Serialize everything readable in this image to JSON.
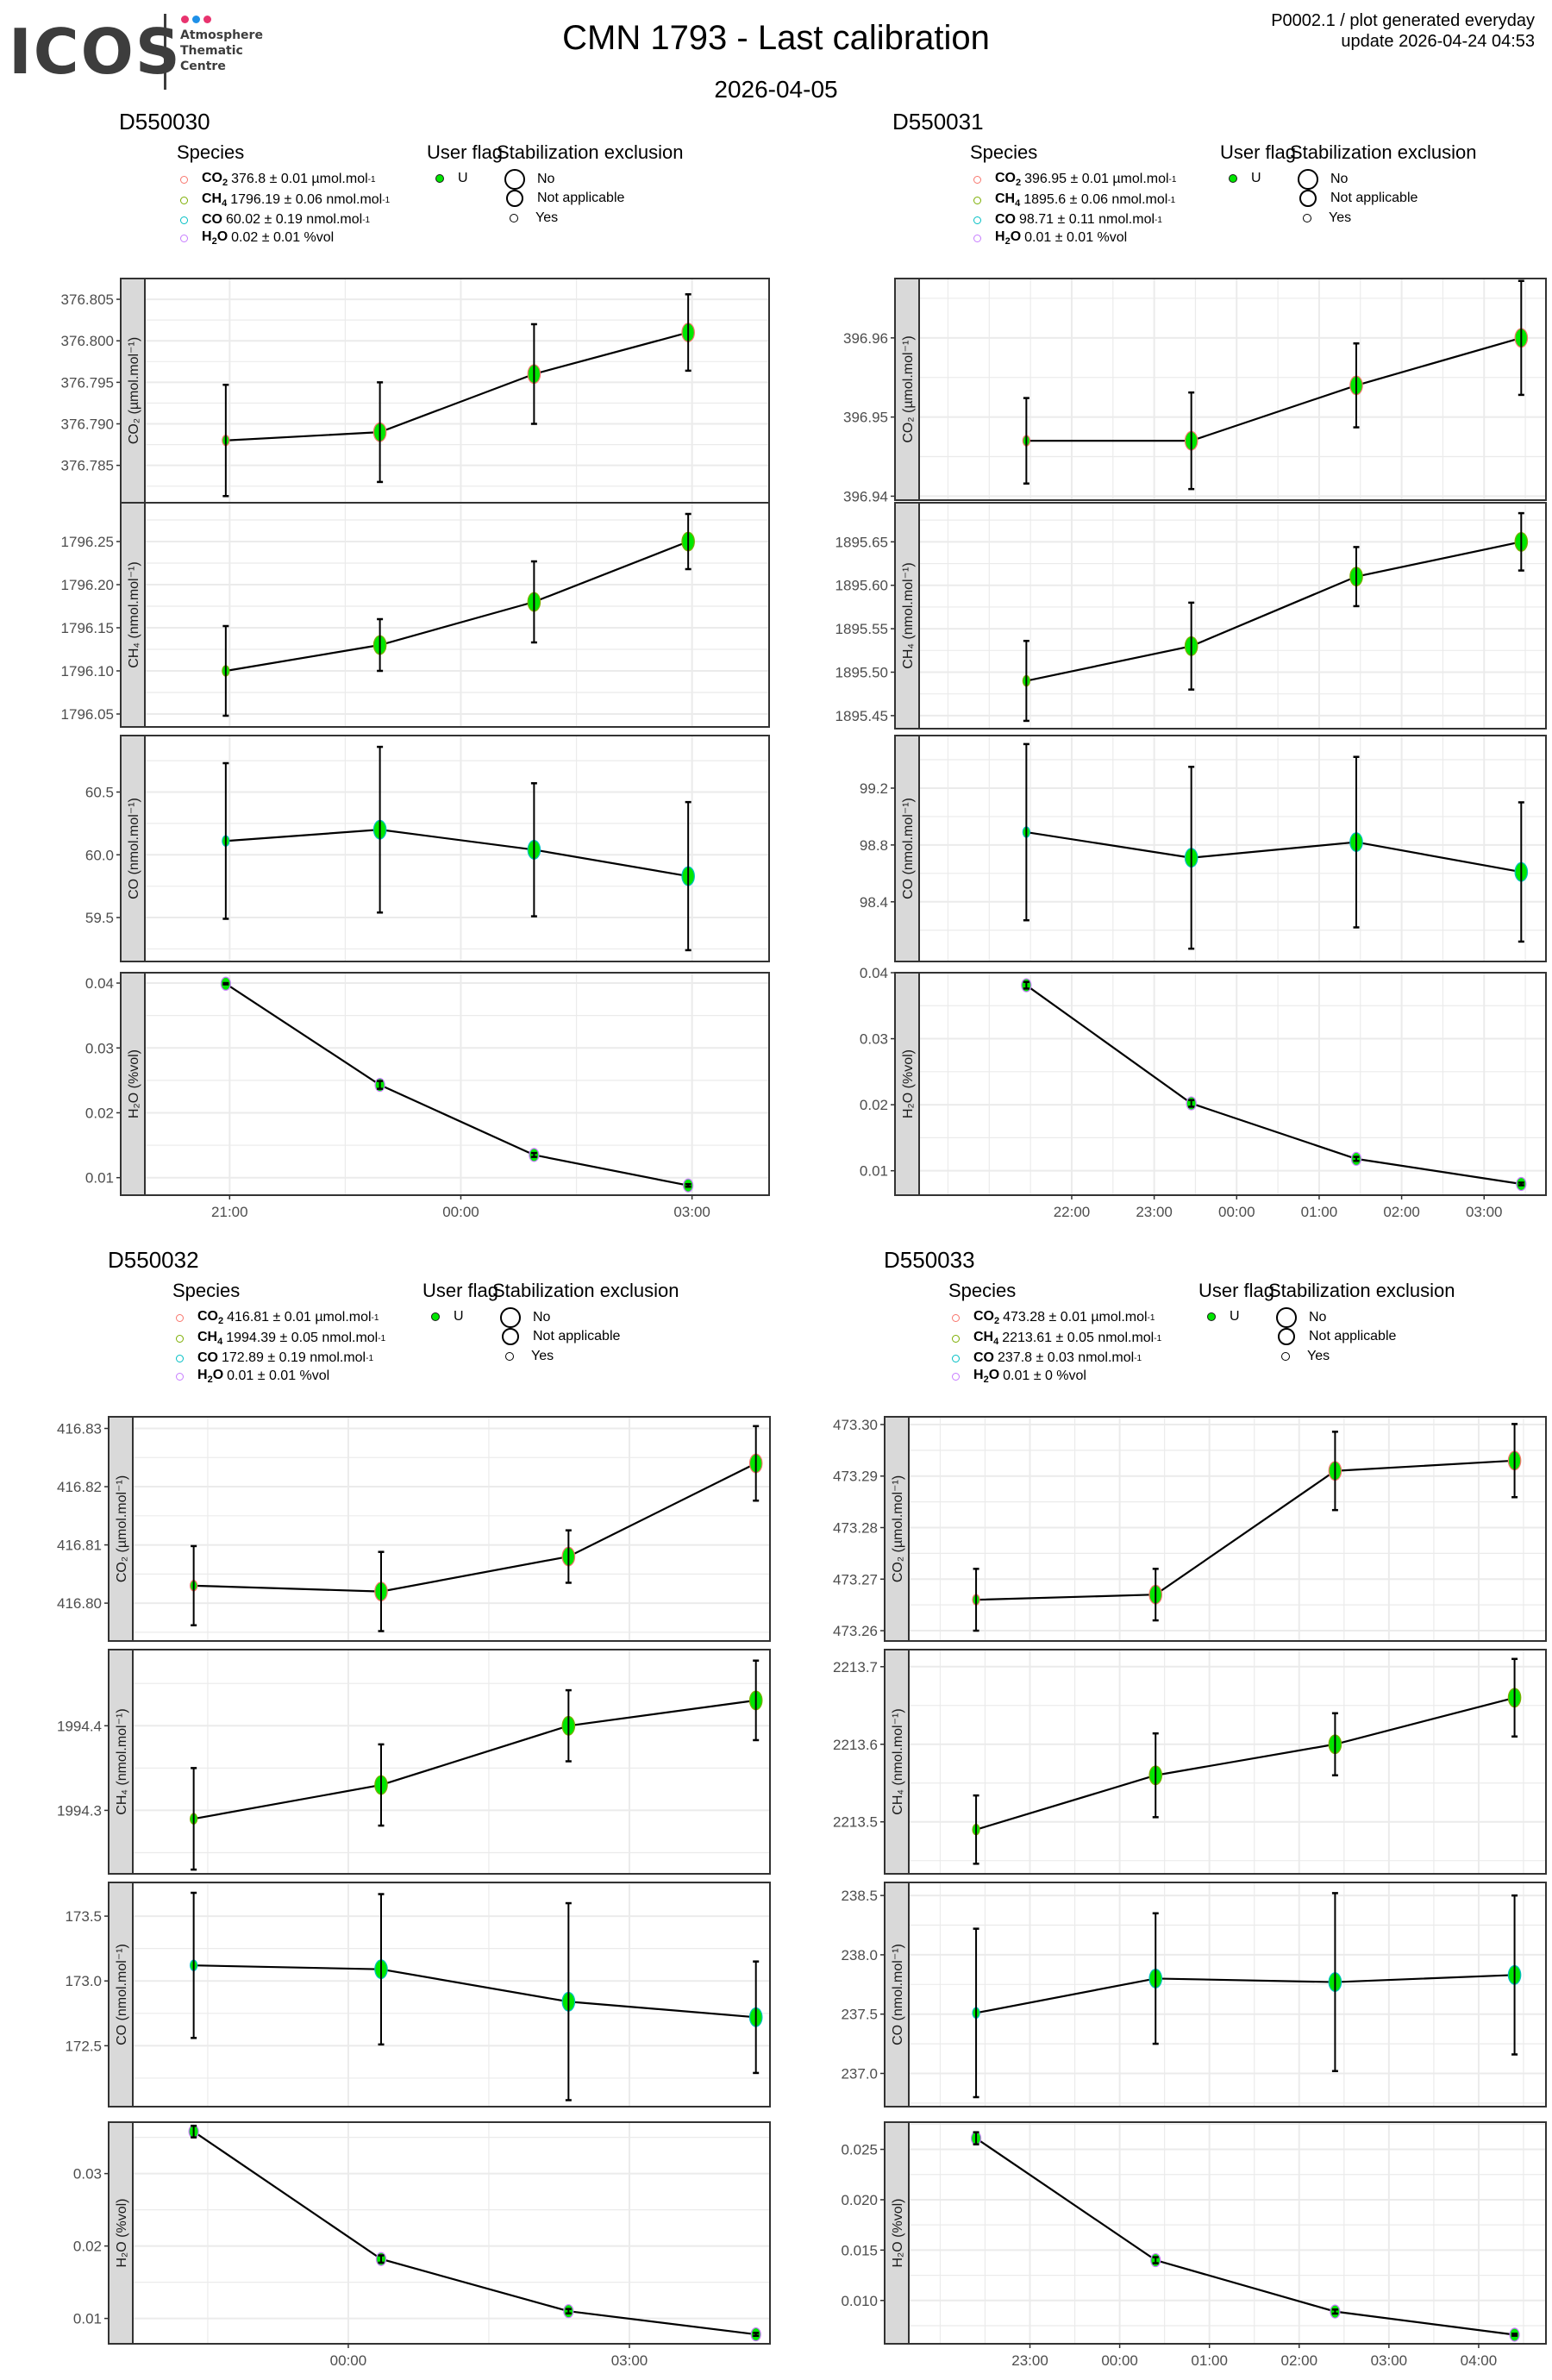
{
  "header": {
    "logo": {
      "text": "ICOS",
      "subtitle_lines": [
        "Atmosphere",
        "Thematic",
        "Centre"
      ],
      "dot_colors": [
        "#e8336e",
        "#1e90e8",
        "#e8336e"
      ]
    },
    "title": "CMN 1793 - Last calibration",
    "date": "2026-04-05",
    "meta_line1": "P0002.1 / plot generated everyday",
    "meta_line2": "update  2026-04-24 04:53"
  },
  "legend_labels": {
    "species_title": "Species",
    "user_flag_title": "User flag",
    "stab_title": "Stabilization exclusion",
    "user_flag_value": "U",
    "stab_values": [
      "No",
      "Not applicable",
      "Yes"
    ]
  },
  "colors": {
    "co2": "#f8766d",
    "ch4": "#7cae00",
    "co": "#00bfc4",
    "h2o": "#c77cff",
    "point_fill": "#00e600",
    "strip_fill": "#d9d9d9",
    "grid": "#ebebeb"
  },
  "chart_data": [
    {
      "type": "line",
      "instrument": "D550030",
      "x_ticks": [
        "21:00",
        "00:00",
        "03:00"
      ],
      "x_hours": [
        21.0,
        24.0,
        27.0
      ],
      "x_range_hours": [
        19.9,
        28.0
      ],
      "point_hours": [
        20.95,
        22.95,
        24.95,
        26.95
      ],
      "species_legend": [
        {
          "name": "CO",
          "sub": "2",
          "text": " 376.8 ± 0.01 µmol.mol",
          "sup": "-1"
        },
        {
          "name": "CH",
          "sub": "4",
          "text": " 1796.19 ± 0.06 nmol.mol",
          "sup": "-1"
        },
        {
          "name": "CO",
          "sub": "",
          "text": " 60.02 ± 0.19 nmol.mol",
          "sup": "-1"
        },
        {
          "name": "H",
          "sub": "2",
          "name2": "O",
          "text": " 0.02 ± 0.01 %vol",
          "sup": ""
        }
      ],
      "panels": [
        {
          "species": "co2",
          "ylabel": "CO₂ (µmol.mol⁻¹)",
          "ylim": [
            376.7805,
            376.8075
          ],
          "yticks": [
            376.785,
            376.79,
            376.795,
            376.8,
            376.805
          ],
          "ytick_labels": [
            "376.785",
            "376.790",
            "376.795",
            "376.800",
            "376.805"
          ],
          "values": [
            376.788,
            376.789,
            376.796,
            376.801
          ],
          "err": [
            0.0067,
            0.006,
            0.006,
            0.0046
          ]
        },
        {
          "species": "ch4",
          "ylabel": "CH₄ (nmol.mol⁻¹)",
          "ylim": [
            1796.035,
            1796.295
          ],
          "yticks": [
            1796.05,
            1796.1,
            1796.15,
            1796.2,
            1796.25
          ],
          "ytick_labels": [
            "1796.05",
            "1796.10",
            "1796.15",
            "1796.20",
            "1796.25"
          ],
          "values": [
            1796.1,
            1796.13,
            1796.18,
            1796.25
          ],
          "err": [
            0.052,
            0.03,
            0.047,
            0.032
          ]
        },
        {
          "species": "co",
          "ylabel": "CO (nmol.mol⁻¹)",
          "ylim": [
            59.15,
            60.95
          ],
          "yticks": [
            59.5,
            60.0,
            60.5
          ],
          "ytick_labels": [
            "59.5",
            "60.0",
            "60.5"
          ],
          "values": [
            60.11,
            60.2,
            60.04,
            59.83
          ],
          "err": [
            0.62,
            0.66,
            0.53,
            0.59
          ]
        },
        {
          "species": "h2o",
          "ylabel": "H₂O (%vol)",
          "ylim": [
            0.0073,
            0.0416
          ],
          "yticks": [
            0.01,
            0.02,
            0.03,
            0.04
          ],
          "ytick_labels": [
            "0.01",
            "0.02",
            "0.03",
            "0.04"
          ],
          "values": [
            0.0399,
            0.0243,
            0.0135,
            0.0088
          ],
          "err": [
            0.0001,
            0.0006,
            0.0003,
            0.0002
          ]
        }
      ]
    },
    {
      "type": "line",
      "instrument": "D550031",
      "x_ticks": [
        "22:00",
        "23:00",
        "00:00",
        "01:00",
        "02:00",
        "03:00"
      ],
      "x_hours": [
        22.0,
        23.0,
        24.0,
        25.0,
        26.0,
        27.0
      ],
      "x_range_hours": [
        20.15,
        27.75
      ],
      "point_hours": [
        21.45,
        23.45,
        25.45,
        27.45
      ],
      "species_legend": [
        {
          "name": "CO",
          "sub": "2",
          "text": " 396.95 ± 0.01 µmol.mol",
          "sup": "-1"
        },
        {
          "name": "CH",
          "sub": "4",
          "text": " 1895.6 ± 0.06 nmol.mol",
          "sup": "-1"
        },
        {
          "name": "CO",
          "sub": "",
          "text": " 98.71 ± 0.11 nmol.mol",
          "sup": "-1"
        },
        {
          "name": "H",
          "sub": "2",
          "name2": "O",
          "text": " 0.01 ± 0.01 %vol",
          "sup": ""
        }
      ],
      "panels": [
        {
          "species": "co2",
          "ylabel": "CO₂ (µmol.mol⁻¹)",
          "ylim": [
            396.9395,
            396.9675
          ],
          "yticks": [
            396.94,
            396.95,
            396.96
          ],
          "ytick_labels": [
            "396.94",
            "396.95",
            "396.96"
          ],
          "values": [
            396.947,
            396.947,
            396.954,
            396.96
          ],
          "err": [
            0.0054,
            0.0061,
            0.0053,
            0.0072
          ]
        },
        {
          "species": "ch4",
          "ylabel": "CH₄ (nmol.mol⁻¹)",
          "ylim": [
            1895.435,
            1895.695
          ],
          "yticks": [
            1895.45,
            1895.5,
            1895.55,
            1895.6,
            1895.65
          ],
          "ytick_labels": [
            "1895.45",
            "1895.50",
            "1895.55",
            "1895.60",
            "1895.65"
          ],
          "values": [
            1895.49,
            1895.53,
            1895.61,
            1895.65
          ],
          "err": [
            0.046,
            0.05,
            0.034,
            0.033
          ]
        },
        {
          "species": "co",
          "ylabel": "CO (nmol.mol⁻¹)",
          "ylim": [
            97.98,
            99.57
          ],
          "yticks": [
            98.4,
            98.8,
            99.2
          ],
          "ytick_labels": [
            "98.4",
            "98.8",
            "99.2"
          ],
          "values": [
            98.89,
            98.71,
            98.82,
            98.61
          ],
          "err": [
            0.62,
            0.64,
            0.6,
            0.49
          ]
        },
        {
          "species": "h2o",
          "ylabel": "H₂O (%vol)",
          "ylim": [
            0.0063,
            0.04
          ],
          "yticks": [
            0.01,
            0.02,
            0.03,
            0.04
          ],
          "ytick_labels": [
            "0.01",
            "0.02",
            "0.03",
            "0.04"
          ],
          "values": [
            0.0381,
            0.0202,
            0.0118,
            0.008
          ],
          "err": [
            0.0005,
            0.0005,
            0.0003,
            0.0002
          ]
        }
      ]
    },
    {
      "type": "line",
      "instrument": "D550032",
      "x_ticks": [
        "00:00",
        "03:00"
      ],
      "x_hours": [
        24.0,
        27.0
      ],
      "x_range_hours": [
        21.7,
        28.5
      ],
      "point_hours": [
        22.35,
        24.35,
        26.35,
        28.35
      ],
      "species_legend": [
        {
          "name": "CO",
          "sub": "2",
          "text": " 416.81 ± 0.01 µmol.mol",
          "sup": "-1"
        },
        {
          "name": "CH",
          "sub": "4",
          "text": " 1994.39 ± 0.05 nmol.mol",
          "sup": "-1"
        },
        {
          "name": "CO",
          "sub": "",
          "text": " 172.89 ± 0.19 nmol.mol",
          "sup": "-1"
        },
        {
          "name": "H",
          "sub": "2",
          "name2": "O",
          "text": " 0.01 ± 0.01 %vol",
          "sup": ""
        }
      ],
      "panels": [
        {
          "species": "co2",
          "ylabel": "CO₂ (µmol.mol⁻¹)",
          "ylim": [
            416.7935,
            416.832
          ],
          "yticks": [
            416.8,
            416.81,
            416.82,
            416.83
          ],
          "ytick_labels": [
            "416.80",
            "416.81",
            "416.82",
            "416.83"
          ],
          "values": [
            416.803,
            416.802,
            416.808,
            416.824
          ],
          "err": [
            0.0068,
            0.0068,
            0.0045,
            0.0064
          ]
        },
        {
          "species": "ch4",
          "ylabel": "CH₄ (nmol.mol⁻¹)",
          "ylim": [
            1994.225,
            1994.49
          ],
          "yticks": [
            1994.3,
            1994.4
          ],
          "ytick_labels": [
            "1994.3",
            "1994.4"
          ],
          "values": [
            1994.29,
            1994.33,
            1994.4,
            1994.43
          ],
          "err": [
            0.06,
            0.048,
            0.042,
            0.047
          ]
        },
        {
          "species": "co",
          "ylabel": "CO (nmol.mol⁻¹)",
          "ylim": [
            172.03,
            173.76
          ],
          "yticks": [
            172.5,
            173.0,
            173.5
          ],
          "ytick_labels": [
            "172.5",
            "173.0",
            "173.5"
          ],
          "values": [
            173.12,
            173.09,
            172.84,
            172.72
          ],
          "err": [
            0.56,
            0.58,
            0.76,
            0.43
          ]
        },
        {
          "species": "h2o",
          "ylabel": "H₂O (%vol)",
          "ylim": [
            0.0065,
            0.0371
          ],
          "yticks": [
            0.01,
            0.02,
            0.03
          ],
          "ytick_labels": [
            "0.01",
            "0.02",
            "0.03"
          ],
          "values": [
            0.0358,
            0.0182,
            0.011,
            0.0078
          ],
          "err": [
            0.0008,
            0.0005,
            0.0003,
            0.0002
          ]
        }
      ]
    },
    {
      "type": "line",
      "instrument": "D550033",
      "x_ticks": [
        "23:00",
        "00:00",
        "01:00",
        "02:00",
        "03:00",
        "04:00"
      ],
      "x_hours": [
        23.0,
        24.0,
        25.0,
        26.0,
        27.0,
        28.0
      ],
      "x_range_hours": [
        21.65,
        28.75
      ],
      "point_hours": [
        22.4,
        24.4,
        26.4,
        28.4
      ],
      "species_legend": [
        {
          "name": "CO",
          "sub": "2",
          "text": " 473.28 ± 0.01 µmol.mol",
          "sup": "-1"
        },
        {
          "name": "CH",
          "sub": "4",
          "text": " 2213.61 ± 0.05 nmol.mol",
          "sup": "-1"
        },
        {
          "name": "CO",
          "sub": "",
          "text": " 237.8 ± 0.03 nmol.mol",
          "sup": "-1"
        },
        {
          "name": "H",
          "sub": "2",
          "name2": "O",
          "text": " 0.01 ± 0 %vol",
          "sup": ""
        }
      ],
      "panels": [
        {
          "species": "co2",
          "ylabel": "CO₂ (µmol.mol⁻¹)",
          "ylim": [
            473.258,
            473.3015
          ],
          "yticks": [
            473.26,
            473.27,
            473.28,
            473.29,
            473.3
          ],
          "ytick_labels": [
            "473.26",
            "473.27",
            "473.28",
            "473.29",
            "473.30"
          ],
          "values": [
            473.266,
            473.267,
            473.291,
            473.293
          ],
          "err": [
            0.006,
            0.005,
            0.0076,
            0.0071
          ]
        },
        {
          "species": "ch4",
          "ylabel": "CH₄ (nmol.mol⁻¹)",
          "ylim": [
            2213.433,
            2213.722
          ],
          "yticks": [
            2213.5,
            2213.6,
            2213.7
          ],
          "ytick_labels": [
            "2213.5",
            "2213.6",
            "2213.7"
          ],
          "values": [
            2213.49,
            2213.56,
            2213.6,
            2213.66
          ],
          "err": [
            0.044,
            0.054,
            0.04,
            0.05
          ]
        },
        {
          "species": "co",
          "ylabel": "CO (nmol.mol⁻¹)",
          "ylim": [
            236.72,
            238.61
          ],
          "yticks": [
            237.0,
            237.5,
            238.0,
            238.5
          ],
          "ytick_labels": [
            "237.0",
            "237.5",
            "238.0",
            "238.5"
          ],
          "values": [
            237.51,
            237.8,
            237.77,
            237.83
          ],
          "err": [
            0.71,
            0.55,
            0.75,
            0.67
          ]
        },
        {
          "species": "h2o",
          "ylabel": "H₂O (%vol)",
          "ylim": [
            0.0057,
            0.0277
          ],
          "yticks": [
            0.01,
            0.015,
            0.02,
            0.025
          ],
          "ytick_labels": [
            "0.010",
            "0.015",
            "0.020",
            "0.025"
          ],
          "values": [
            0.0261,
            0.014,
            0.0089,
            0.0066
          ],
          "err": [
            0.0006,
            0.0003,
            0.0002,
            0.0001
          ]
        }
      ]
    }
  ]
}
